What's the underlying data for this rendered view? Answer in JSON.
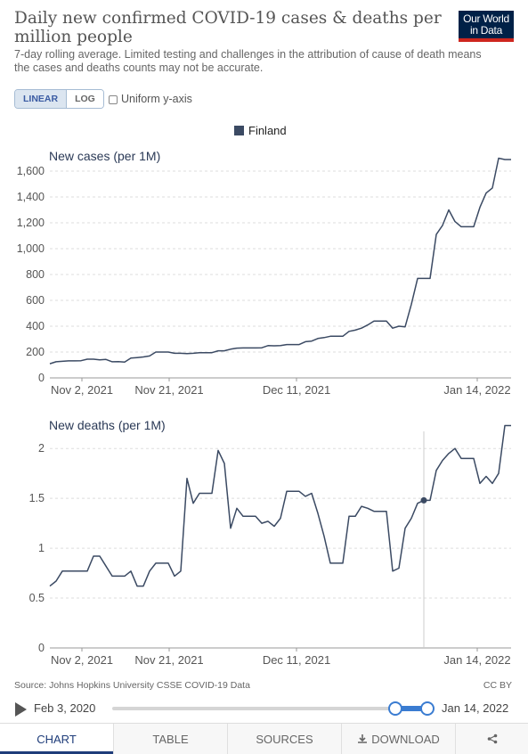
{
  "header": {
    "title": "Daily new confirmed COVID-19 cases & deaths per million people",
    "subtitle": "7-day rolling average. Limited testing and challenges in the attribution of cause of death means the cases and deaths counts may not be accurate.",
    "logo_line1": "Our World",
    "logo_line2": "in Data"
  },
  "controls": {
    "linear_label": "LINEAR",
    "log_label": "LOG",
    "uniform_label": "Uniform y-axis",
    "uniform_checked": false,
    "active_scale": "linear"
  },
  "legend": {
    "label": "Finland",
    "color": "#3b4a63"
  },
  "chart_data": [
    {
      "type": "line",
      "title": "New cases (per 1M)",
      "x_ticks": [
        "Nov 2, 2021",
        "Nov 21, 2021",
        "Dec 11, 2021",
        "Jan 14, 2022"
      ],
      "y_ticks": [
        "0",
        "200",
        "400",
        "600",
        "800",
        "1,000",
        "1,200",
        "1,400",
        "1,600"
      ],
      "ylim": [
        0,
        1600
      ],
      "grid": true,
      "series": [
        {
          "name": "Finland",
          "color": "#3b4a63",
          "x": [
            0,
            1,
            2,
            3,
            4,
            5,
            6,
            7,
            8,
            9,
            10,
            11,
            12,
            13,
            14,
            15,
            16,
            17,
            18,
            19,
            20,
            21,
            22,
            23,
            24,
            25,
            26,
            27,
            28,
            29,
            30,
            31,
            32,
            33,
            34,
            35,
            36,
            37,
            38,
            39,
            40,
            41,
            42,
            43,
            44,
            45,
            46,
            47,
            48,
            49,
            50,
            51,
            52,
            53,
            54,
            55,
            56,
            57,
            58,
            59,
            60,
            61,
            62,
            63,
            64,
            65,
            66,
            67,
            68,
            69,
            70,
            71,
            72,
            73,
            74
          ],
          "y": [
            110,
            125,
            128,
            132,
            132,
            133,
            145,
            145,
            140,
            143,
            125,
            126,
            123,
            153,
            157,
            162,
            170,
            200,
            200,
            200,
            190,
            190,
            188,
            190,
            195,
            195,
            195,
            210,
            210,
            222,
            230,
            232,
            232,
            232,
            233,
            250,
            248,
            250,
            258,
            258,
            258,
            280,
            285,
            305,
            312,
            322,
            322,
            322,
            360,
            370,
            385,
            410,
            440,
            440,
            440,
            385,
            400,
            395,
            570,
            770,
            770,
            770,
            1110,
            1180,
            1300,
            1210,
            1170,
            1170,
            1170,
            1320,
            1430,
            1470,
            1700,
            1690,
            1690
          ]
        }
      ]
    },
    {
      "type": "line",
      "title": "New deaths (per 1M)",
      "x_ticks": [
        "Nov 2, 2021",
        "Nov 21, 2021",
        "Dec 11, 2021",
        "Jan 14, 2022"
      ],
      "y_ticks": [
        "0",
        "0.5",
        "1",
        "1.5",
        "2"
      ],
      "ylim": [
        0,
        2.1
      ],
      "grid": true,
      "hover_date_index": 60,
      "series": [
        {
          "name": "Finland",
          "color": "#3b4a63",
          "x": [
            0,
            1,
            2,
            3,
            4,
            5,
            6,
            7,
            8,
            9,
            10,
            11,
            12,
            13,
            14,
            15,
            16,
            17,
            18,
            19,
            20,
            21,
            22,
            23,
            24,
            25,
            26,
            27,
            28,
            29,
            30,
            31,
            32,
            33,
            34,
            35,
            36,
            37,
            38,
            39,
            40,
            41,
            42,
            43,
            44,
            45,
            46,
            47,
            48,
            49,
            50,
            51,
            52,
            53,
            54,
            55,
            56,
            57,
            58,
            59,
            60,
            61,
            62,
            63,
            64,
            65,
            66,
            67,
            68,
            69,
            70,
            71,
            72,
            73,
            74
          ],
          "y": [
            0.62,
            0.67,
            0.77,
            0.77,
            0.77,
            0.77,
            0.77,
            0.92,
            0.92,
            0.82,
            0.72,
            0.72,
            0.72,
            0.77,
            0.62,
            0.62,
            0.77,
            0.85,
            0.85,
            0.85,
            0.72,
            0.77,
            1.7,
            1.45,
            1.55,
            1.55,
            1.55,
            1.98,
            1.85,
            1.2,
            1.4,
            1.32,
            1.32,
            1.32,
            1.25,
            1.27,
            1.22,
            1.3,
            1.57,
            1.57,
            1.57,
            1.52,
            1.55,
            1.35,
            1.12,
            0.85,
            0.85,
            0.85,
            1.32,
            1.32,
            1.42,
            1.4,
            1.37,
            1.37,
            1.37,
            0.77,
            0.8,
            1.2,
            1.3,
            1.45,
            1.48,
            1.48,
            1.78,
            1.88,
            1.95,
            2.0,
            1.9,
            1.9,
            1.9,
            1.65,
            1.72,
            1.65,
            1.75,
            2.23,
            2.23
          ]
        }
      ]
    }
  ],
  "footer": {
    "source": "Source: Johns Hopkins University CSSE COVID-19 Data",
    "license": "CC BY"
  },
  "timeline": {
    "start_label": "Feb 3, 2020",
    "end_label": "Jan 14, 2022"
  },
  "tabs": {
    "chart": "CHART",
    "table": "TABLE",
    "sources": "SOURCES",
    "download": "DOWNLOAD"
  }
}
